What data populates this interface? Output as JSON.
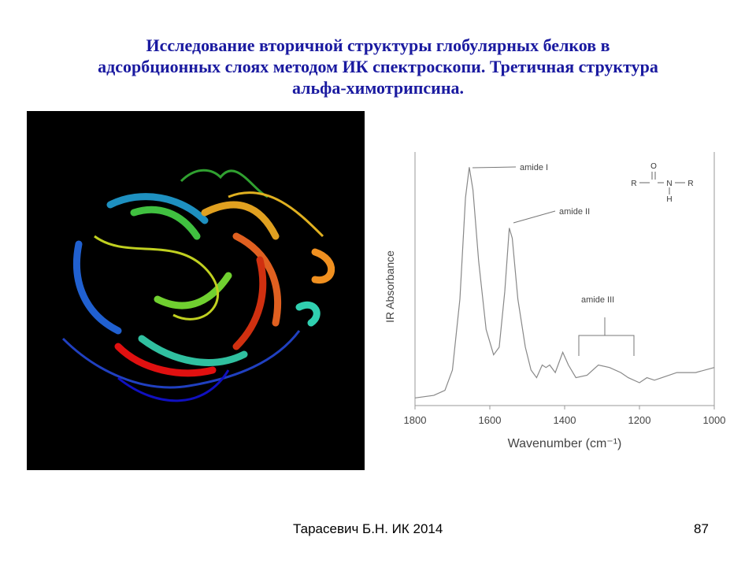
{
  "title_lines": [
    "Исследование вторичной структуры глобулярных белков в",
    "адсорбционных слоях методом ИК спектроскопи. Третичная структура",
    "альфа-химотрипсина."
  ],
  "footer": "Тарасевич Б.Н.  ИК 2014",
  "page_number": "87",
  "structure": {
    "atoms": [
      "O",
      "R",
      "N",
      "R",
      "H"
    ]
  },
  "chart_data": {
    "type": "line",
    "x_label": "Wavenumber (cm⁻¹)",
    "y_label": "IR Absorbance",
    "annotations": [
      "amide I",
      "amide II",
      "amide III"
    ],
    "x": [
      1800,
      1750,
      1720,
      1700,
      1680,
      1665,
      1655,
      1645,
      1630,
      1610,
      1590,
      1575,
      1560,
      1548,
      1540,
      1525,
      1505,
      1490,
      1475,
      1460,
      1450,
      1440,
      1425,
      1405,
      1390,
      1370,
      1340,
      1310,
      1280,
      1250,
      1230,
      1200,
      1180,
      1160,
      1140,
      1100,
      1050,
      1000
    ],
    "values": [
      0.03,
      0.04,
      0.06,
      0.14,
      0.42,
      0.82,
      0.94,
      0.85,
      0.57,
      0.3,
      0.2,
      0.23,
      0.45,
      0.7,
      0.66,
      0.42,
      0.23,
      0.14,
      0.11,
      0.16,
      0.15,
      0.16,
      0.13,
      0.21,
      0.16,
      0.11,
      0.12,
      0.16,
      0.15,
      0.13,
      0.11,
      0.09,
      0.11,
      0.1,
      0.11,
      0.13,
      0.13,
      0.15
    ],
    "color": "#888888",
    "xlim": [
      1800,
      1000
    ],
    "xticks": [
      1800,
      1600,
      1400,
      1200,
      1000
    ],
    "ylim": [
      0,
      1
    ]
  }
}
